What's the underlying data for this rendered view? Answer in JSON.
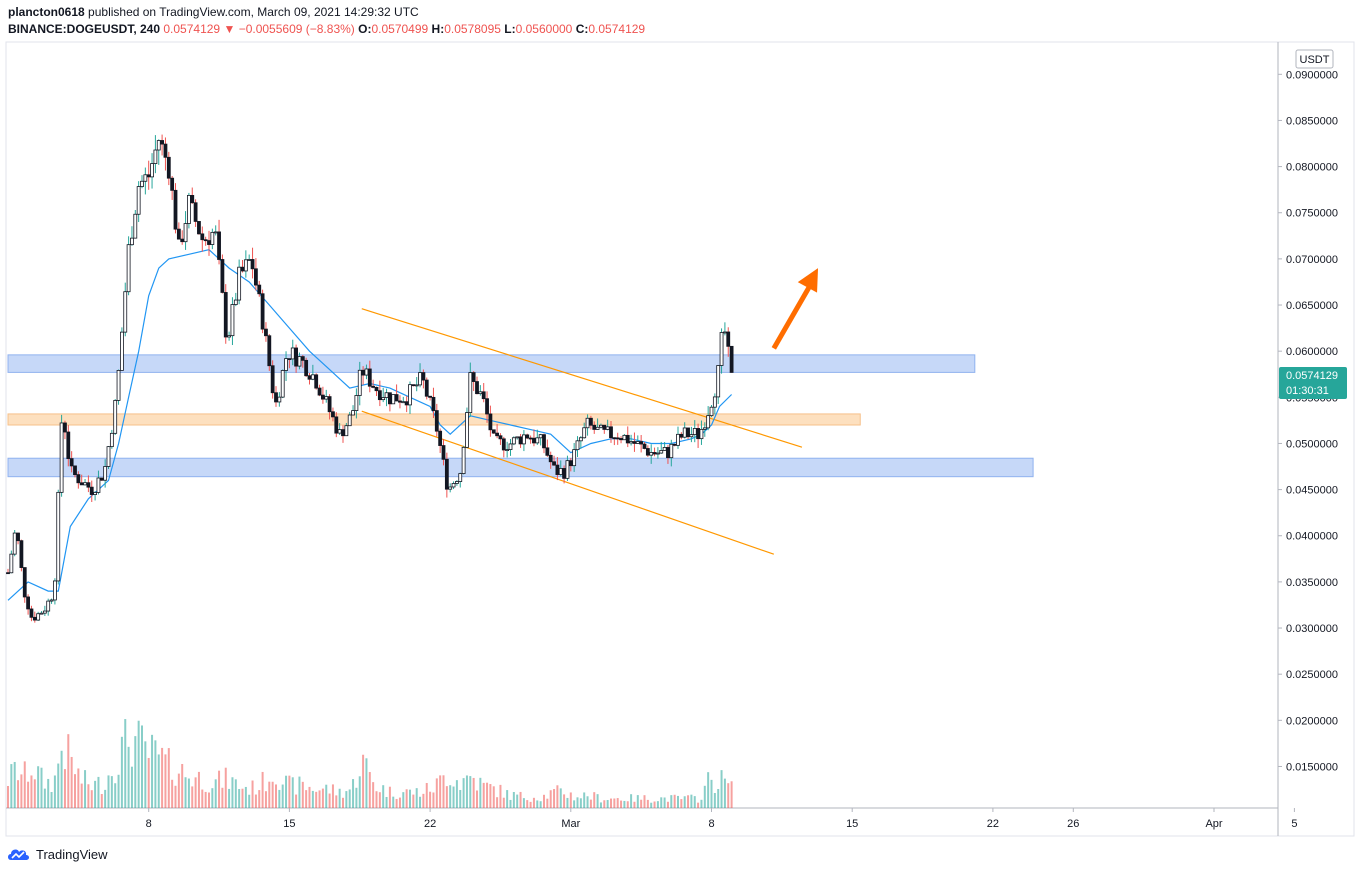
{
  "header": {
    "author": "plancton0618",
    "published_text": "published on TradingView.com, March 09, 2021 14:29:32 UTC",
    "symbol": "BINANCE:DOGEUSDT, 240",
    "last": "0.0574129",
    "change_arrow": "▼",
    "change": "−0.0055609 (−8.83%)",
    "o_label": "O:",
    "o": "0.0570499",
    "h_label": "H:",
    "h": "0.0578095",
    "l_label": "L:",
    "l": "0.0560000",
    "c_label": "C:",
    "c": "0.0574129"
  },
  "footer": {
    "brand": "TradingView"
  },
  "colors": {
    "up": "#26a69a",
    "down": "#ef5350",
    "candle_body_up": "#ffffff",
    "candle_body_down": "#131722",
    "ma": "#2196f3",
    "channel": "#ff9800",
    "zone_blue": "#b3cbf6",
    "zone_orange": "#fcd6a9",
    "arrow": "#ff6d00",
    "price_tag": "#26a69a"
  },
  "chart_data": {
    "type": "candlestick",
    "currency_label": "USDT",
    "price_tag": {
      "price": "0.0574129",
      "countdown": "01:30:31"
    },
    "ylim": [
      0.0105,
      0.0935
    ],
    "y_ticks": [
      "0.0900000",
      "0.0850000",
      "0.0800000",
      "0.0750000",
      "0.0700000",
      "0.0650000",
      "0.0600000",
      "0.0550000",
      "0.0500000",
      "0.0450000",
      "0.0400000",
      "0.0350000",
      "0.0300000",
      "0.0250000",
      "0.0200000",
      "0.0150000"
    ],
    "x_ticks": [
      {
        "label": "8",
        "day": 8
      },
      {
        "label": "15",
        "day": 15
      },
      {
        "label": "22",
        "day": 22
      },
      {
        "label": "Mar",
        "day": 29
      },
      {
        "label": "8",
        "day": 36
      },
      {
        "label": "15",
        "day": 43
      },
      {
        "label": "22",
        "day": 50
      },
      {
        "label": "26",
        "day": 54
      },
      {
        "label": "Apr",
        "day": 61
      },
      {
        "label": "5",
        "day": 65
      }
    ],
    "x_range_days": [
      1.0,
      66.0
    ],
    "zones": [
      {
        "name": "resistance-zone",
        "color": "blue",
        "y1": 0.0577,
        "y2": 0.0596,
        "x1": 1.0,
        "x2": 49.1
      },
      {
        "name": "breakout-zone",
        "color": "orange",
        "y1": 0.052,
        "y2": 0.0532,
        "x1": 1.0,
        "x2": 43.4
      },
      {
        "name": "support-zone",
        "color": "blue",
        "y1": 0.0464,
        "y2": 0.0484,
        "x1": 1.0,
        "x2": 52.0
      }
    ],
    "channel": [
      {
        "x1": 18.6,
        "y1": 0.0646,
        "x2": 40.5,
        "y2": 0.0496
      },
      {
        "x1": 18.6,
        "y1": 0.0535,
        "x2": 39.1,
        "y2": 0.038
      }
    ],
    "arrow": {
      "x1": 39.1,
      "y1": 0.0603,
      "x2": 41.3,
      "y2": 0.069
    },
    "anchors": [
      [
        1.0,
        0.036,
        900
      ],
      [
        1.4,
        0.041,
        1200
      ],
      [
        1.8,
        0.034,
        1000
      ],
      [
        2.2,
        0.031,
        1300
      ],
      [
        2.8,
        0.032,
        800
      ],
      [
        3.3,
        0.034,
        800
      ],
      [
        3.7,
        0.054,
        2000
      ],
      [
        4.1,
        0.047,
        1500
      ],
      [
        4.6,
        0.046,
        900
      ],
      [
        5.2,
        0.045,
        700
      ],
      [
        5.8,
        0.047,
        800
      ],
      [
        6.4,
        0.055,
        1500
      ],
      [
        7.0,
        0.071,
        2200
      ],
      [
        7.5,
        0.078,
        2000
      ],
      [
        8.0,
        0.079,
        1700
      ],
      [
        8.5,
        0.083,
        1600
      ],
      [
        9.0,
        0.08,
        1300
      ],
      [
        9.5,
        0.071,
        1200
      ],
      [
        10.0,
        0.076,
        1000
      ],
      [
        10.7,
        0.072,
        900
      ],
      [
        11.3,
        0.073,
        800
      ],
      [
        11.9,
        0.061,
        900
      ],
      [
        12.5,
        0.068,
        700
      ],
      [
        13.1,
        0.07,
        600
      ],
      [
        13.7,
        0.063,
        800
      ],
      [
        14.3,
        0.054,
        1200
      ],
      [
        14.9,
        0.06,
        700
      ],
      [
        15.6,
        0.059,
        700
      ],
      [
        16.3,
        0.057,
        600
      ],
      [
        16.9,
        0.054,
        600
      ],
      [
        17.5,
        0.051,
        500
      ],
      [
        18.1,
        0.053,
        600
      ],
      [
        18.6,
        0.058,
        1500
      ],
      [
        19.3,
        0.056,
        700
      ],
      [
        20.0,
        0.055,
        500
      ],
      [
        20.8,
        0.055,
        500
      ],
      [
        21.6,
        0.057,
        500
      ],
      [
        22.3,
        0.052,
        700
      ],
      [
        22.9,
        0.045,
        1100
      ],
      [
        23.5,
        0.047,
        800
      ],
      [
        24.0,
        0.057,
        1000
      ],
      [
        24.6,
        0.055,
        700
      ],
      [
        25.2,
        0.05,
        600
      ],
      [
        26.0,
        0.05,
        400
      ],
      [
        26.8,
        0.051,
        350
      ],
      [
        27.6,
        0.05,
        350
      ],
      [
        28.2,
        0.047,
        500
      ],
      [
        28.7,
        0.047,
        500
      ],
      [
        29.2,
        0.049,
        350
      ],
      [
        29.8,
        0.052,
        400
      ],
      [
        30.6,
        0.051,
        300
      ],
      [
        31.4,
        0.051,
        300
      ],
      [
        32.2,
        0.05,
        300
      ],
      [
        33.0,
        0.049,
        300
      ],
      [
        33.8,
        0.049,
        300
      ],
      [
        34.6,
        0.051,
        300
      ],
      [
        35.4,
        0.051,
        300
      ],
      [
        35.9,
        0.054,
        900
      ],
      [
        36.3,
        0.057,
        800
      ],
      [
        36.6,
        0.063,
        900
      ],
      [
        37.0,
        0.057,
        600
      ]
    ],
    "ma_anchors": [
      [
        1.0,
        0.033
      ],
      [
        2.0,
        0.035
      ],
      [
        3.0,
        0.034
      ],
      [
        3.5,
        0.034
      ],
      [
        4.1,
        0.041
      ],
      [
        5.0,
        0.044
      ],
      [
        6.0,
        0.046
      ],
      [
        6.5,
        0.05
      ],
      [
        7.0,
        0.055
      ],
      [
        7.5,
        0.06
      ],
      [
        8.0,
        0.066
      ],
      [
        8.5,
        0.069
      ],
      [
        9.0,
        0.07
      ],
      [
        10.0,
        0.0705
      ],
      [
        11.0,
        0.071
      ],
      [
        11.5,
        0.07
      ],
      [
        12.0,
        0.069
      ],
      [
        13.0,
        0.0675
      ],
      [
        14.0,
        0.065
      ],
      [
        15.0,
        0.0625
      ],
      [
        16.0,
        0.06
      ],
      [
        17.0,
        0.058
      ],
      [
        18.0,
        0.056
      ],
      [
        19.0,
        0.0565
      ],
      [
        20.0,
        0.056
      ],
      [
        21.0,
        0.055
      ],
      [
        22.0,
        0.054
      ],
      [
        22.5,
        0.052
      ],
      [
        23.0,
        0.051
      ],
      [
        24.0,
        0.053
      ],
      [
        25.0,
        0.0525
      ],
      [
        26.0,
        0.052
      ],
      [
        27.0,
        0.0515
      ],
      [
        28.0,
        0.051
      ],
      [
        29.0,
        0.049
      ],
      [
        30.0,
        0.05
      ],
      [
        31.0,
        0.0505
      ],
      [
        32.0,
        0.0505
      ],
      [
        33.0,
        0.05
      ],
      [
        34.0,
        0.05
      ],
      [
        35.0,
        0.0505
      ],
      [
        35.5,
        0.051
      ],
      [
        36.0,
        0.052
      ],
      [
        36.4,
        0.054
      ],
      [
        37.0,
        0.0553
      ]
    ]
  }
}
